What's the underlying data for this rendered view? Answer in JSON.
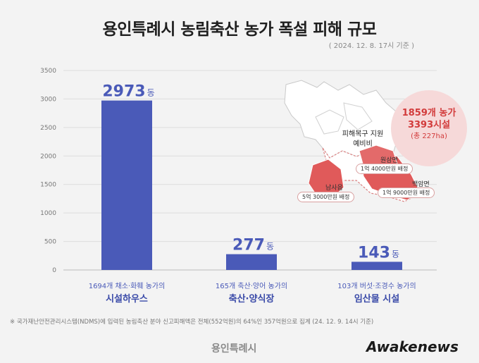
{
  "title": "용인특례시 농림축산 농가 폭설 피해 규모",
  "date": "( 2024. 12. 8. 17시 기준 )",
  "chart_data": {
    "type": "bar",
    "categories": [
      "시설하우스",
      "축산·양식장",
      "임산물 시설"
    ],
    "category_subtitles": [
      "1694개 채소·화훼 농가의",
      "165개 축산·양어 농가의",
      "103개 버섯·조경수 농가의"
    ],
    "values": [
      2973,
      277,
      143
    ],
    "value_unit": "동",
    "ylim": [
      0,
      3500
    ],
    "yticks": [
      0,
      500,
      1000,
      1500,
      2000,
      2500,
      3000,
      3500
    ],
    "bar_color": "#4a5ab8",
    "grid": true
  },
  "map": {
    "title_line1": "피해복구 지원",
    "title_line2": "예비비",
    "regions": [
      {
        "name": "원삼면",
        "amount": "1억 4000만원 배정"
      },
      {
        "name": "백암면",
        "amount": "1억 9000만원 배정"
      },
      {
        "name": "남사읍",
        "amount": "5억 3000만원 배정"
      }
    ]
  },
  "badge": {
    "line1": "1859개 농가",
    "line2": "3393시설",
    "line3": "(총 227ha)"
  },
  "footnote": "※ 국가재난안전관리시스템(NDMS)에 입력된 농림축산 분야 신고피해액은 전체(552억원)의 64%인 357억원으로 집계 (24. 12. 9. 14시 기준)",
  "logo": "용인특례시",
  "watermark": "Awakenews",
  "colors": {
    "bar": "#4a5ab8",
    "damage": "#e05a5a",
    "badge_bg": "#f6d9d9",
    "badge_text": "#d23b3b"
  }
}
